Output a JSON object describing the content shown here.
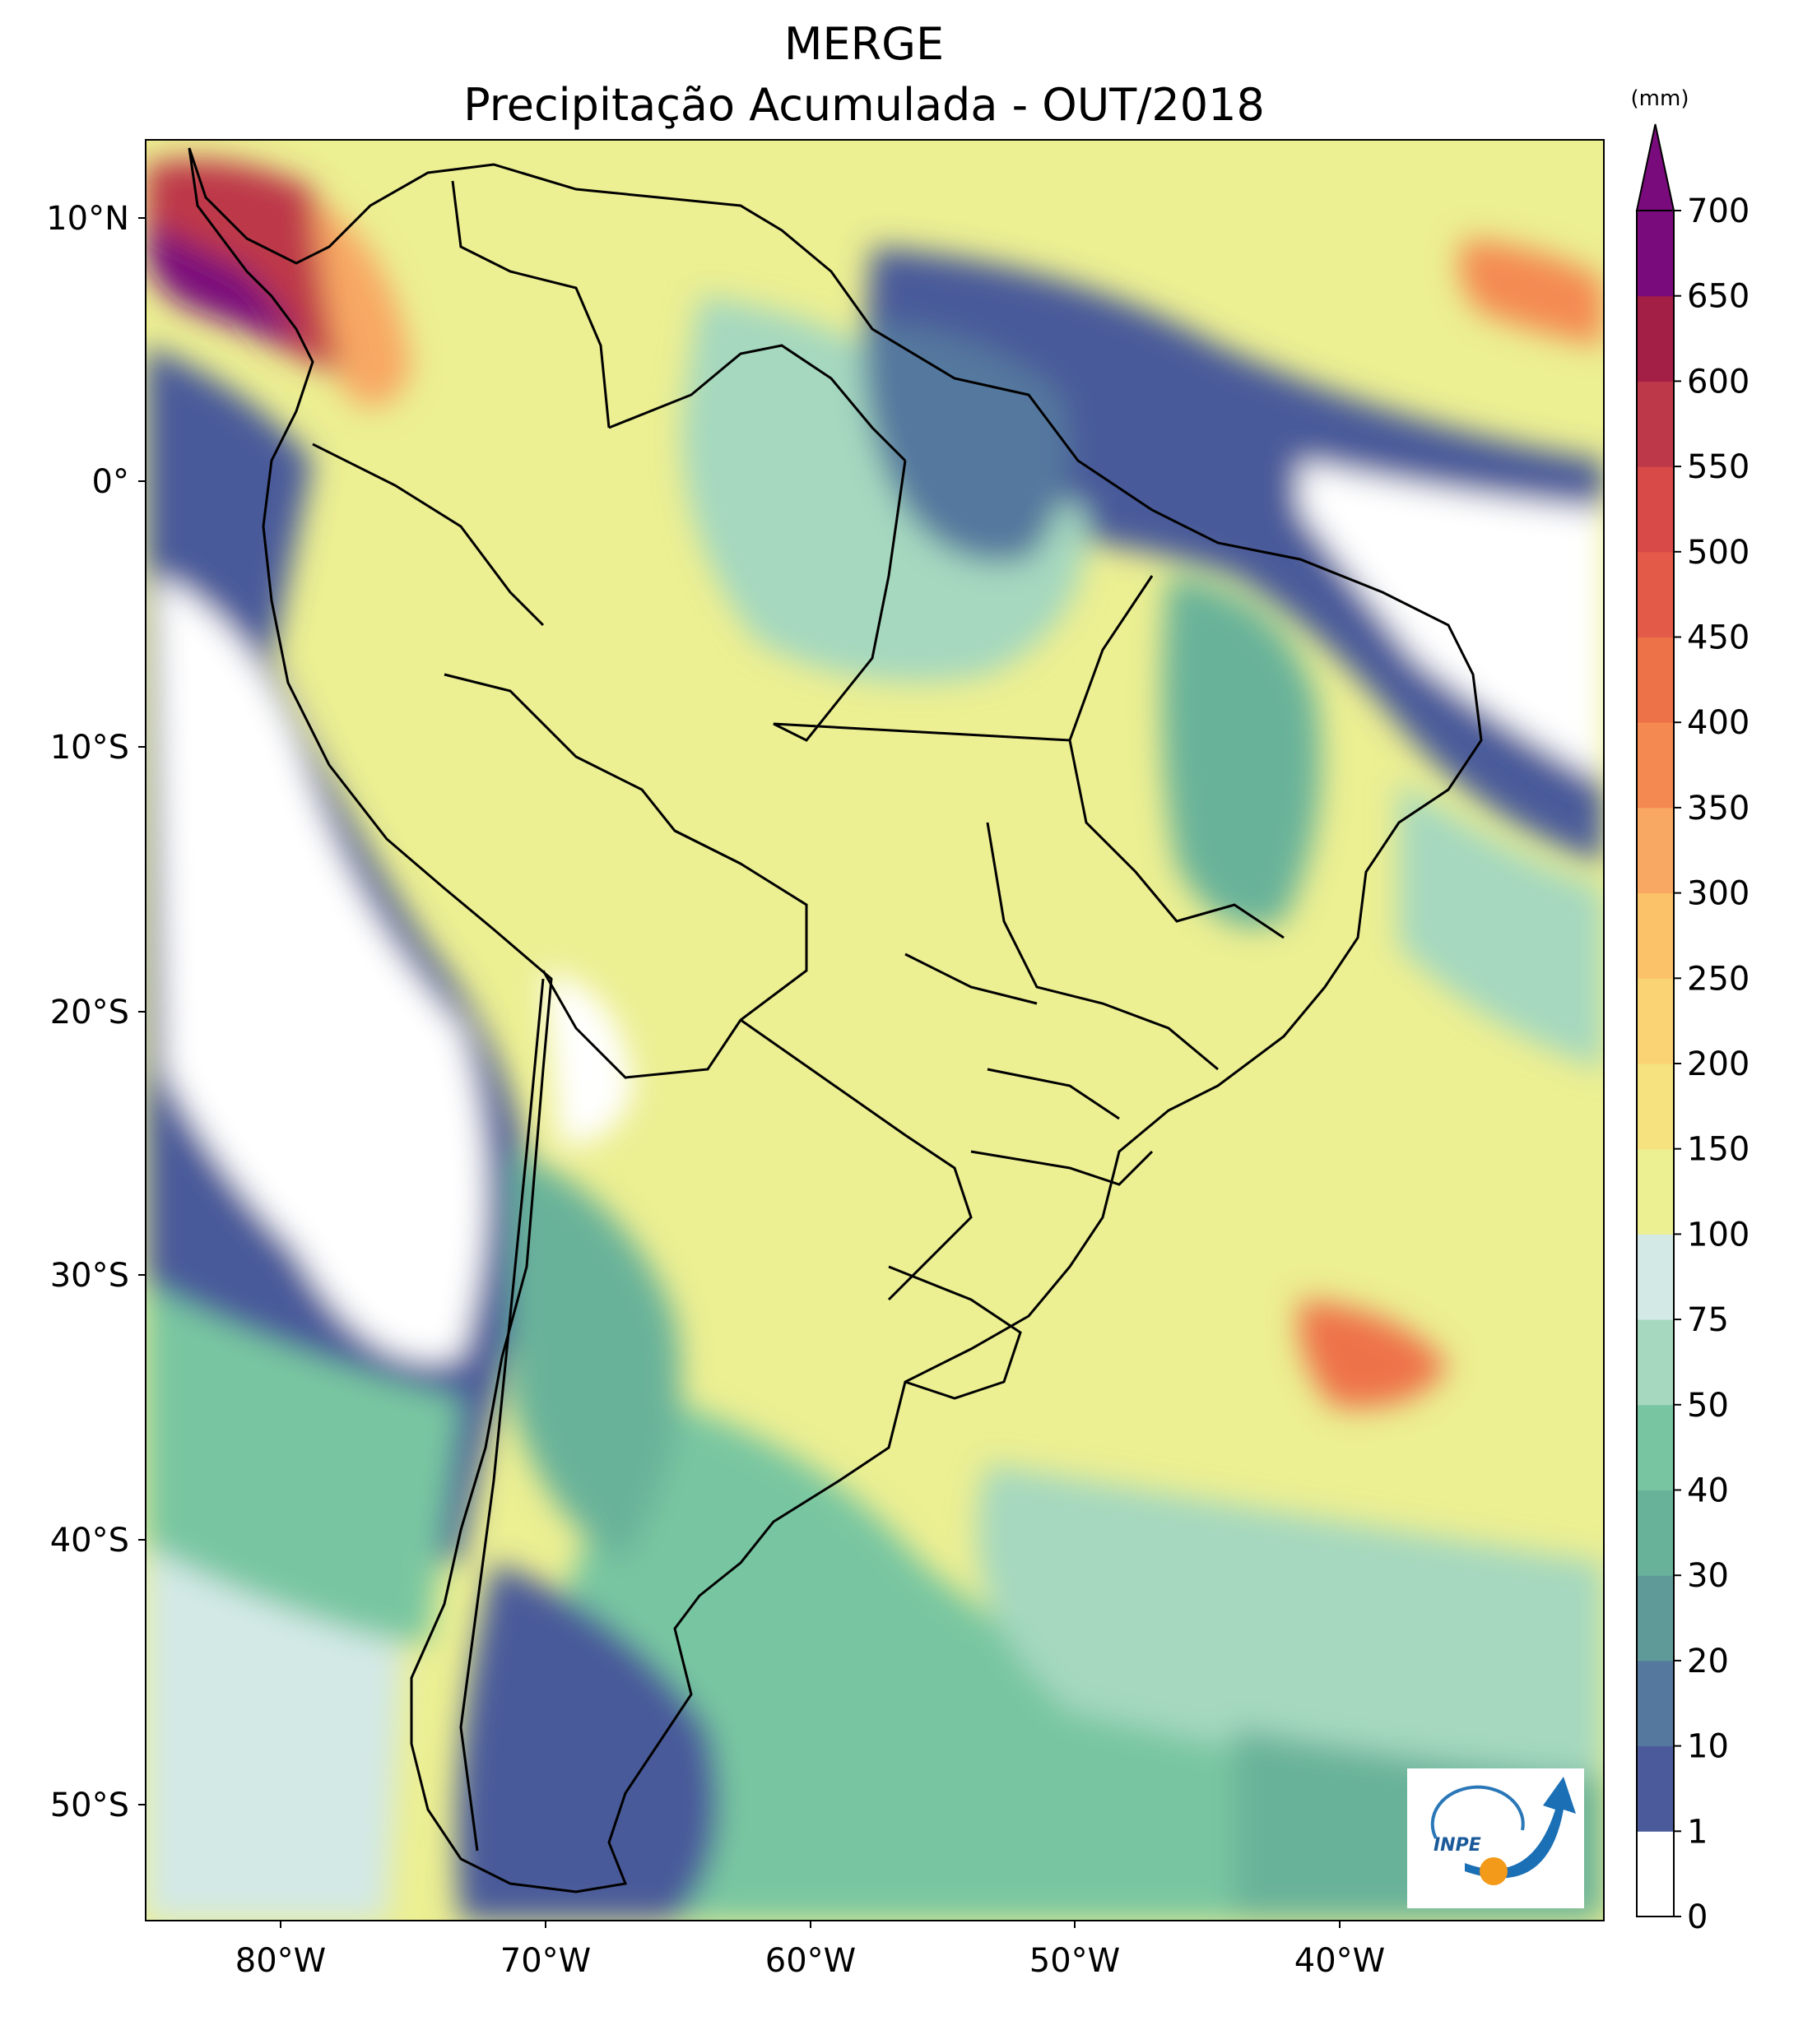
{
  "title": {
    "line1": "MERGE",
    "line2": "Precipitação Acumulada - OUT/2018"
  },
  "map": {
    "lat_ticks": [
      "10°N",
      "0°",
      "10°S",
      "20°S",
      "30°S",
      "40°S",
      "50°S"
    ],
    "lon_ticks": [
      "80°W",
      "70°W",
      "60°W",
      "50°W",
      "40°W"
    ],
    "logo_text": "INPE"
  },
  "colorbar": {
    "unit": "(mm)",
    "extend": "max",
    "levels": [
      "0",
      "1",
      "10",
      "20",
      "30",
      "40",
      "50",
      "75",
      "100",
      "150",
      "200",
      "250",
      "300",
      "350",
      "400",
      "450",
      "500",
      "550",
      "600",
      "650",
      "700"
    ],
    "colors": [
      "#ffffff",
      "#4a5a9a",
      "#55789e",
      "#5f9a98",
      "#69b29a",
      "#78c6a1",
      "#a5d8bf",
      "#d3e9e6",
      "#ecef92",
      "#f6e27e",
      "#f9d374",
      "#fbc26a",
      "#f8a863",
      "#f48a52",
      "#ee7248",
      "#e35a48",
      "#d74a48",
      "#bd3848",
      "#a31f46",
      "#7a0b7c"
    ]
  }
}
